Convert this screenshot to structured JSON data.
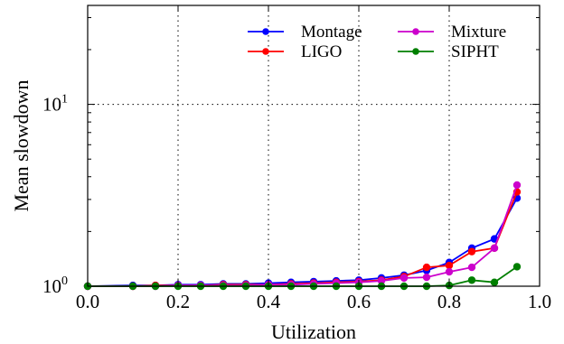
{
  "chart_data": {
    "type": "line",
    "title": "",
    "xlabel": "Utilization",
    "ylabel": "Mean slowdown",
    "xlim": [
      0.0,
      1.0
    ],
    "ylim": [
      1,
      35
    ],
    "yscale": "log",
    "grid": "dotted, major ticks only",
    "legend_position": "top-right, two columns",
    "x_tick_labels": [
      "0.0",
      "0.2",
      "0.4",
      "0.6",
      "0.8",
      "1.0"
    ],
    "y_tick_labels": [
      {
        "base": "10",
        "exp": "0",
        "value": 1
      },
      {
        "base": "10",
        "exp": "1",
        "value": 10
      }
    ],
    "series": [
      {
        "name": "Montage",
        "color": "#0000ff",
        "x": [
          0.0,
          0.1,
          0.15,
          0.2,
          0.25,
          0.3,
          0.35,
          0.4,
          0.45,
          0.5,
          0.55,
          0.6,
          0.65,
          0.7,
          0.75,
          0.8,
          0.85,
          0.9,
          0.95
        ],
        "y": [
          1.0,
          1.01,
          1.01,
          1.02,
          1.02,
          1.03,
          1.03,
          1.04,
          1.05,
          1.06,
          1.07,
          1.08,
          1.11,
          1.15,
          1.22,
          1.35,
          1.62,
          1.82,
          3.05
        ]
      },
      {
        "name": "LIGO",
        "color": "#ff0000",
        "x": [
          0.0,
          0.1,
          0.15,
          0.2,
          0.25,
          0.3,
          0.35,
          0.4,
          0.45,
          0.5,
          0.55,
          0.6,
          0.65,
          0.7,
          0.75,
          0.8,
          0.85,
          0.9,
          0.95
        ],
        "y": [
          1.0,
          1.0,
          1.01,
          1.01,
          1.01,
          1.02,
          1.02,
          1.02,
          1.03,
          1.04,
          1.05,
          1.06,
          1.08,
          1.13,
          1.27,
          1.3,
          1.55,
          1.62,
          3.3
        ]
      },
      {
        "name": "Mixture",
        "color": "#cc00cc",
        "x": [
          0.0,
          0.1,
          0.15,
          0.2,
          0.25,
          0.3,
          0.35,
          0.4,
          0.45,
          0.5,
          0.55,
          0.6,
          0.65,
          0.7,
          0.75,
          0.8,
          0.85,
          0.9,
          0.95
        ],
        "y": [
          1.0,
          1.0,
          1.0,
          1.01,
          1.01,
          1.01,
          1.01,
          1.02,
          1.02,
          1.03,
          1.04,
          1.05,
          1.07,
          1.11,
          1.12,
          1.2,
          1.27,
          1.62,
          3.6
        ]
      },
      {
        "name": "SIPHT",
        "color": "#007f00",
        "x": [
          0.0,
          0.1,
          0.15,
          0.2,
          0.25,
          0.3,
          0.35,
          0.4,
          0.45,
          0.5,
          0.55,
          0.6,
          0.65,
          0.7,
          0.75,
          0.8,
          0.85,
          0.9,
          0.95
        ],
        "y": [
          1.0,
          1.0,
          1.0,
          1.0,
          1.0,
          1.0,
          1.0,
          1.0,
          1.0,
          1.0,
          1.0,
          1.0,
          1.0,
          1.0,
          1.0,
          1.01,
          1.08,
          1.05,
          1.28
        ]
      }
    ]
  }
}
